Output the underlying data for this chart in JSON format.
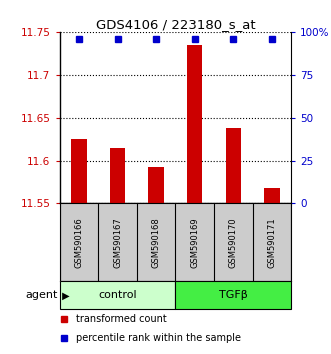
{
  "title": "GDS4106 / 223180_s_at",
  "samples": [
    "GSM590166",
    "GSM590167",
    "GSM590168",
    "GSM590169",
    "GSM590170",
    "GSM590171"
  ],
  "bar_values": [
    11.625,
    11.615,
    11.593,
    11.735,
    11.638,
    11.568
  ],
  "percentile_values": [
    99,
    99,
    99,
    99,
    99,
    99
  ],
  "ylim_left": [
    11.55,
    11.75
  ],
  "ylim_right": [
    0,
    100
  ],
  "yticks_left": [
    11.55,
    11.6,
    11.65,
    11.7,
    11.75
  ],
  "yticks_right": [
    0,
    25,
    50,
    75,
    100
  ],
  "bar_color": "#cc0000",
  "dot_color": "#0000cc",
  "control_samples": [
    0,
    1,
    2
  ],
  "tgfb_samples": [
    3,
    4,
    5
  ],
  "control_label": "control",
  "tgfb_label": "TGFβ",
  "agent_label": "agent",
  "legend1": "transformed count",
  "legend2": "percentile rank within the sample",
  "control_color": "#ccffcc",
  "tgfb_color": "#44ee44",
  "background_color": "#ffffff",
  "label_box_color": "#cccccc"
}
